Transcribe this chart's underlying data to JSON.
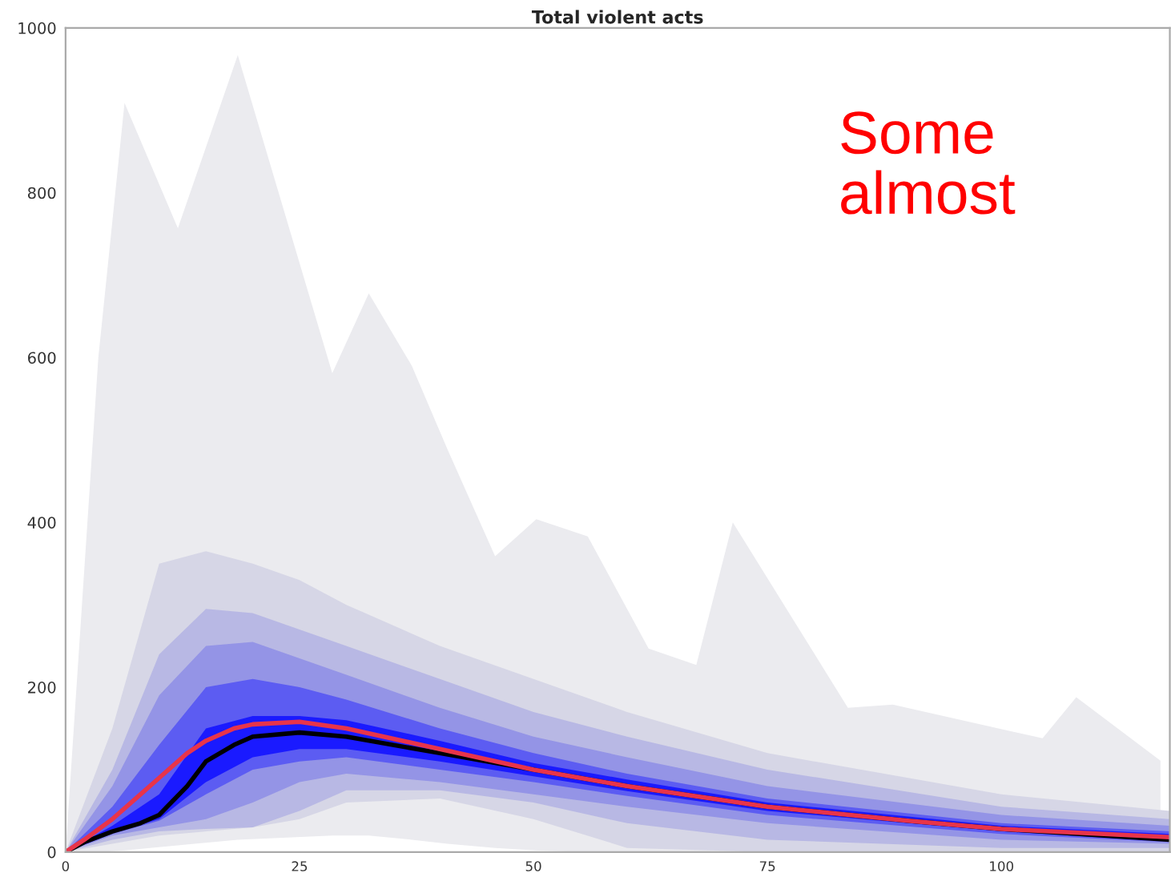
{
  "chart_data": {
    "type": "area",
    "title": "Total violent acts",
    "xlim": [
      0,
      118
    ],
    "xticks": [
      0,
      25,
      50,
      75,
      100
    ],
    "ylim": [
      0,
      1000
    ],
    "yticks": [
      0,
      200,
      400,
      600,
      800,
      1000
    ],
    "grid": false,
    "legend": false,
    "annotations": [
      "Some\nalmost"
    ],
    "series": [
      {
        "color": "#ebebef",
        "x": [
          0,
          3.5,
          6.3,
          12,
          18.4,
          28.5,
          32.4,
          37,
          40.8,
          45.9,
          50.3,
          55.8,
          62.3,
          67.4,
          71.3,
          83.6,
          88.4,
          104.4,
          108,
          117
        ],
        "values": [
          null,
          null,
          null,
          null,
          null,
          null,
          null,
          null,
          null,
          null,
          null,
          null,
          null,
          null,
          null,
          null,
          null,
          null,
          null,
          null
        ],
        "lower": [
          0,
          0,
          2,
          8,
          15,
          20,
          20,
          15,
          10,
          5,
          2,
          0,
          0,
          0,
          0,
          0,
          0,
          0,
          0,
          0
        ],
        "upper": [
          0,
          600,
          909,
          757,
          967,
          581,
          678,
          590,
          489,
          359,
          404,
          383,
          247,
          227,
          400,
          175,
          179,
          138,
          188,
          111
        ]
      },
      {
        "color": "#d6d6e6",
        "x": [
          0,
          5,
          10,
          15,
          20,
          25,
          30,
          40,
          50,
          60,
          75,
          100,
          118
        ],
        "values": [
          null,
          null,
          null,
          null,
          null,
          null,
          null,
          null,
          null,
          null,
          null,
          null,
          null
        ],
        "lower": [
          0,
          10,
          20,
          25,
          30,
          40,
          60,
          65,
          40,
          5,
          0,
          0,
          0
        ],
        "upper": [
          0,
          150,
          350,
          365,
          350,
          330,
          300,
          250,
          210,
          170,
          120,
          70,
          50
        ]
      },
      {
        "color": "#b8b8e4",
        "x": [
          0,
          5,
          10,
          15,
          20,
          25,
          30,
          40,
          50,
          60,
          75,
          100,
          118
        ],
        "values": [
          null,
          null,
          null,
          null,
          null,
          null,
          null,
          null,
          null,
          null,
          null,
          null,
          null
        ],
        "lower": [
          0,
          15,
          25,
          28,
          30,
          50,
          75,
          75,
          60,
          35,
          15,
          5,
          5
        ],
        "upper": [
          0,
          100,
          240,
          295,
          290,
          270,
          250,
          210,
          170,
          140,
          100,
          55,
          40
        ]
      },
      {
        "color": "#9494e6",
        "x": [
          0,
          5,
          10,
          15,
          20,
          25,
          30,
          40,
          50,
          60,
          75,
          100,
          118
        ],
        "values": [
          null,
          null,
          null,
          null,
          null,
          null,
          null,
          null,
          null,
          null,
          null,
          null,
          null
        ],
        "lower": [
          0,
          20,
          30,
          40,
          60,
          85,
          95,
          85,
          70,
          55,
          35,
          15,
          10
        ],
        "upper": [
          0,
          80,
          190,
          250,
          255,
          235,
          215,
          175,
          140,
          115,
          80,
          45,
          32
        ]
      },
      {
        "color": "#5c5cf2",
        "x": [
          0,
          5,
          10,
          15,
          20,
          25,
          30,
          40,
          50,
          60,
          75,
          100,
          118
        ],
        "values": [
          null,
          null,
          null,
          null,
          null,
          null,
          null,
          null,
          null,
          null,
          null,
          null,
          null
        ],
        "lower": [
          0,
          22,
          38,
          70,
          100,
          110,
          115,
          100,
          85,
          68,
          45,
          22,
          12
        ],
        "upper": [
          0,
          55,
          130,
          200,
          210,
          200,
          185,
          150,
          120,
          95,
          65,
          35,
          25
        ]
      },
      {
        "color": "#1a1aff",
        "x": [
          0,
          5,
          10,
          15,
          20,
          25,
          30,
          40,
          50,
          60,
          75,
          100,
          118
        ],
        "values": [
          null,
          null,
          null,
          null,
          null,
          null,
          null,
          null,
          null,
          null,
          null,
          null,
          null
        ],
        "lower": [
          0,
          23,
          40,
          85,
          115,
          125,
          125,
          110,
          92,
          74,
          50,
          25,
          13
        ],
        "upper": [
          0,
          32,
          70,
          150,
          165,
          165,
          160,
          135,
          108,
          88,
          60,
          32,
          22
        ]
      },
      {
        "type": "line",
        "color": "#000000",
        "x": [
          0,
          2,
          5,
          8,
          10,
          13,
          15,
          18,
          20,
          25,
          30,
          40,
          50,
          60,
          75,
          90,
          100,
          118
        ],
        "values": [
          0,
          12,
          25,
          35,
          45,
          80,
          110,
          130,
          140,
          145,
          140,
          120,
          100,
          80,
          55,
          38,
          28,
          15
        ]
      },
      {
        "type": "line",
        "color": "#e8344a",
        "x": [
          0,
          2,
          5,
          8,
          10,
          13,
          15,
          18,
          20,
          25,
          30,
          40,
          50,
          60,
          75,
          90,
          100,
          118
        ],
        "values": [
          0,
          15,
          40,
          70,
          90,
          120,
          135,
          150,
          155,
          158,
          150,
          125,
          100,
          80,
          55,
          38,
          28,
          18
        ]
      }
    ]
  }
}
